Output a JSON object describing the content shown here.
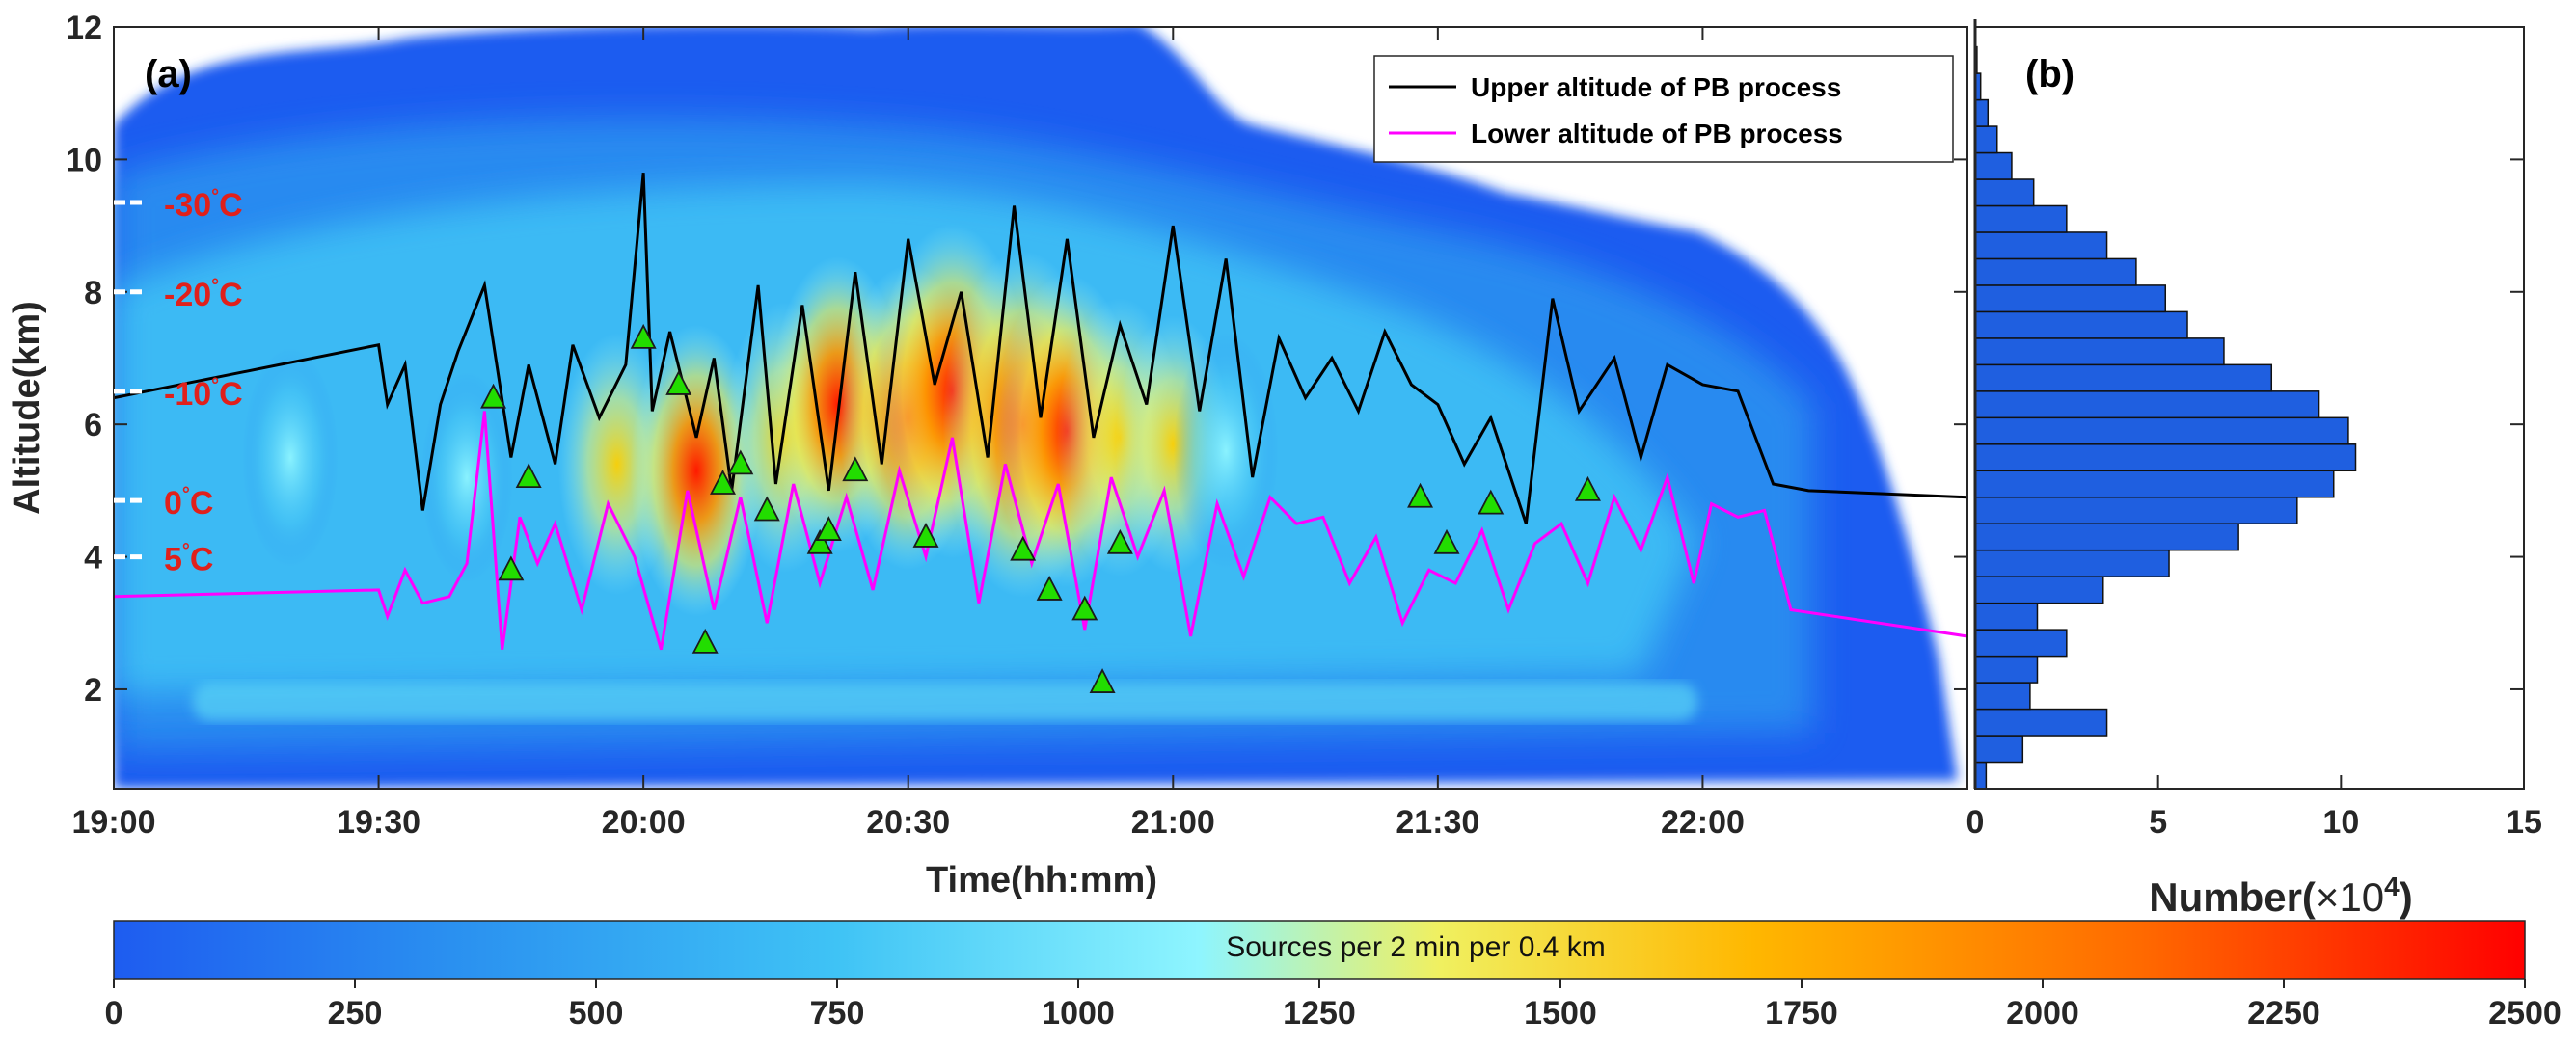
{
  "chart_data": [
    {
      "panel": "(a)",
      "type": "heatmap",
      "xlabel": "Time(hh:mm)",
      "ylabel": "Altitude(km)",
      "xlim_minutes": [
        0,
        210
      ],
      "ylim": [
        0.5,
        12
      ],
      "x_ticks": [
        {
          "value": 0,
          "label": "19:00"
        },
        {
          "value": 30,
          "label": "19:30"
        },
        {
          "value": 60,
          "label": "20:00"
        },
        {
          "value": 90,
          "label": "20:30"
        },
        {
          "value": 120,
          "label": "21:00"
        },
        {
          "value": 150,
          "label": "21:30"
        },
        {
          "value": 180,
          "label": "22:00"
        }
      ],
      "y_ticks": [
        2,
        4,
        6,
        8,
        10,
        12
      ],
      "temperature_levels": [
        {
          "label": "-30°C",
          "text": "-30",
          "altitude": 9.35
        },
        {
          "label": "-20°C",
          "text": "-20",
          "altitude": 8.0
        },
        {
          "label": "-10°C",
          "text": "-10",
          "altitude": 6.5
        },
        {
          "label": "0°C",
          "text": "0",
          "altitude": 4.85
        },
        {
          "label": "5°C",
          "text": "5",
          "altitude": 4.0
        }
      ],
      "legend": [
        {
          "name": "Upper altitude of PB process",
          "color": "#000000"
        },
        {
          "name": "Lower altitude of PB process",
          "color": "#ff00ff"
        }
      ],
      "series": [
        {
          "name": "Upper altitude of PB process",
          "color": "#000000",
          "x": [
            0,
            30,
            31,
            33,
            35,
            37,
            39,
            42,
            45,
            47,
            50,
            52,
            55,
            58,
            60,
            61,
            63,
            66,
            68,
            70,
            73,
            75,
            78,
            81,
            84,
            87,
            90,
            93,
            96,
            99,
            102,
            105,
            108,
            111,
            114,
            117,
            120,
            123,
            126,
            129,
            132,
            135,
            138,
            141,
            144,
            147,
            150,
            153,
            156,
            160,
            163,
            166,
            170,
            173,
            176,
            180,
            184,
            188,
            192,
            210
          ],
          "values": [
            6.4,
            7.2,
            6.3,
            6.9,
            4.7,
            6.3,
            7.1,
            8.1,
            5.5,
            6.9,
            5.4,
            7.2,
            6.1,
            6.9,
            9.8,
            6.2,
            7.4,
            5.8,
            7.0,
            5.0,
            8.1,
            5.1,
            7.8,
            5.0,
            8.3,
            5.4,
            8.8,
            6.6,
            8.0,
            5.5,
            9.3,
            6.1,
            8.8,
            5.8,
            7.5,
            6.3,
            9.0,
            6.2,
            8.5,
            5.2,
            7.3,
            6.4,
            7.0,
            6.2,
            7.4,
            6.6,
            6.3,
            5.4,
            6.1,
            4.5,
            7.9,
            6.2,
            7.0,
            5.5,
            6.9,
            6.6,
            6.5,
            5.1,
            5.0,
            4.9
          ]
        },
        {
          "name": "Lower altitude of PB process",
          "color": "#ff00ff",
          "x": [
            0,
            30,
            31,
            33,
            35,
            38,
            40,
            42,
            44,
            46,
            48,
            50,
            53,
            56,
            59,
            62,
            65,
            68,
            71,
            74,
            77,
            80,
            83,
            86,
            89,
            92,
            95,
            98,
            101,
            104,
            107,
            110,
            113,
            116,
            119,
            122,
            125,
            128,
            131,
            134,
            137,
            140,
            143,
            146,
            149,
            152,
            155,
            158,
            161,
            164,
            167,
            170,
            173,
            176,
            179,
            181,
            184,
            187,
            190,
            210
          ],
          "values": [
            3.4,
            3.5,
            3.1,
            3.8,
            3.3,
            3.4,
            3.9,
            6.2,
            2.6,
            4.6,
            3.9,
            4.5,
            3.2,
            4.8,
            4.0,
            2.6,
            5.0,
            3.2,
            4.9,
            3.0,
            5.1,
            3.6,
            4.9,
            3.5,
            5.3,
            4.0,
            5.8,
            3.3,
            5.4,
            3.9,
            5.1,
            2.9,
            5.2,
            4.0,
            5.0,
            2.8,
            4.8,
            3.7,
            4.9,
            4.5,
            4.6,
            3.6,
            4.3,
            3.0,
            3.8,
            3.6,
            4.4,
            3.2,
            4.2,
            4.5,
            3.6,
            4.9,
            4.1,
            5.2,
            3.6,
            4.8,
            4.6,
            4.7,
            3.2,
            2.8
          ]
        }
      ],
      "markers": {
        "shape": "triangle",
        "color": "#22dd00",
        "x": [
          43,
          45,
          47,
          60,
          64,
          67,
          69,
          71,
          74,
          80,
          81,
          84,
          92,
          103,
          106,
          110,
          112,
          114,
          148,
          151,
          156,
          167
        ],
        "values": [
          6.4,
          3.8,
          5.2,
          7.3,
          6.6,
          2.7,
          5.1,
          5.4,
          4.7,
          4.2,
          4.4,
          5.3,
          4.3,
          4.1,
          3.5,
          3.2,
          2.1,
          4.2,
          4.9,
          4.2,
          4.8,
          5.0
        ]
      },
      "intensity_peaks": [
        {
          "x": 57,
          "y": 5.4,
          "value": 1500
        },
        {
          "x": 66,
          "y": 5.3,
          "value": 1850
        },
        {
          "x": 76,
          "y": 5.8,
          "value": 1600
        },
        {
          "x": 82,
          "y": 6.3,
          "value": 1900
        },
        {
          "x": 90,
          "y": 6.1,
          "value": 2000
        },
        {
          "x": 95,
          "y": 6.5,
          "value": 2350
        },
        {
          "x": 103,
          "y": 6.0,
          "value": 2500
        },
        {
          "x": 108,
          "y": 5.9,
          "value": 2100
        },
        {
          "x": 114,
          "y": 5.8,
          "value": 1700
        },
        {
          "x": 120,
          "y": 5.7,
          "value": 1450
        },
        {
          "x": 126,
          "y": 5.6,
          "value": 1200
        },
        {
          "x": 40,
          "y": 5.2,
          "value": 900
        },
        {
          "x": 20,
          "y": 5.5,
          "value": 1000
        }
      ]
    },
    {
      "panel": "(b)",
      "type": "bar",
      "orientation": "horizontal",
      "xlabel": "Number(×10⁴)",
      "xlabel_main": "Number(",
      "xlabel_times": "×10",
      "xlabel_exp": "4",
      "xlabel_close": ")",
      "xlim": [
        0,
        15
      ],
      "x_ticks": [
        0,
        5,
        10,
        15
      ],
      "bin_width_km": 0.4,
      "bin_centers": [
        0.7,
        1.1,
        1.5,
        1.9,
        2.3,
        2.7,
        3.1,
        3.5,
        3.9,
        4.3,
        4.7,
        5.1,
        5.5,
        5.9,
        6.3,
        6.7,
        7.1,
        7.5,
        7.9,
        8.3,
        8.7,
        9.1,
        9.5,
        9.9,
        10.3,
        10.7,
        11.1,
        11.5
      ],
      "values": [
        0.3,
        1.3,
        3.6,
        1.5,
        1.7,
        2.5,
        1.7,
        3.5,
        5.3,
        7.2,
        8.8,
        9.8,
        10.4,
        10.2,
        9.4,
        8.1,
        6.8,
        5.8,
        5.2,
        4.4,
        3.6,
        2.5,
        1.6,
        1.0,
        0.6,
        0.35,
        0.15,
        0.05
      ],
      "color": "#1f5fe0"
    }
  ],
  "colorbar": {
    "title": "Sources per 2 min per 0.4 km",
    "min": 0,
    "max": 2500,
    "ticks": [
      "0",
      "250",
      "500",
      "750",
      "1000",
      "1250",
      "1500",
      "1750",
      "2000",
      "2250",
      "2500"
    ],
    "colors": [
      "#1e5cf0",
      "#2a90f0",
      "#3fc3f5",
      "#8ef5ff",
      "#f0f060",
      "#ffb700",
      "#ff6a00",
      "#ff0000"
    ]
  }
}
